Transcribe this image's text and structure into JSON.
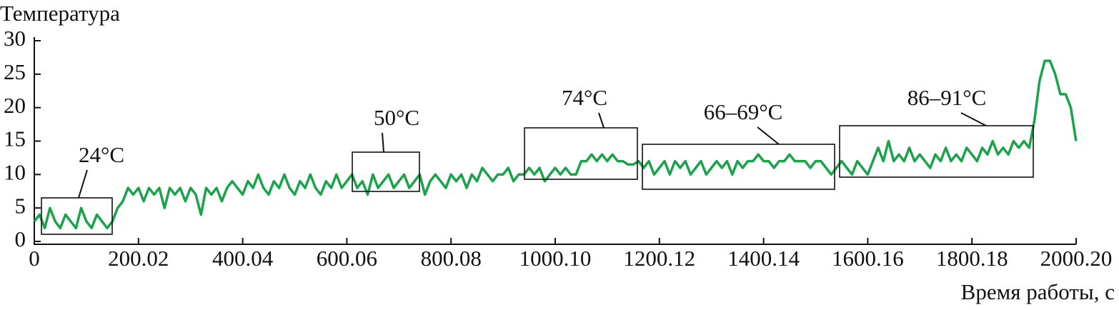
{
  "chart_data": {
    "type": "line",
    "y_label": "Температура",
    "x_label": "Время работы, с",
    "color": "#1aa34a",
    "xlim": [
      0,
      2000.2
    ],
    "ylim": [
      0,
      30
    ],
    "xticks": [
      0,
      200.02,
      400.04,
      600.06,
      800.08,
      {
        "value": 1000.1,
        "label": "1000.10"
      },
      1200.12,
      1400.14,
      1600.16,
      1800.18,
      {
        "value": 2000.2,
        "label": "2000.20"
      }
    ],
    "yticks": [
      0,
      5,
      10,
      15,
      20,
      25,
      30
    ],
    "annotations": [
      "24°C",
      "50°C",
      "74°C",
      "66–69°C",
      "86–91°C"
    ],
    "x": [
      0,
      10,
      20,
      30,
      40,
      50,
      60,
      70,
      80,
      90,
      100,
      110,
      120,
      130,
      140,
      150,
      160,
      170,
      180,
      190,
      200,
      210,
      220,
      230,
      240,
      250,
      260,
      270,
      280,
      290,
      300,
      310,
      320,
      330,
      340,
      350,
      360,
      370,
      380,
      390,
      400,
      410,
      420,
      430,
      440,
      450,
      460,
      470,
      480,
      490,
      500,
      510,
      520,
      530,
      540,
      550,
      560,
      570,
      580,
      590,
      600,
      610,
      620,
      630,
      640,
      650,
      660,
      670,
      680,
      690,
      700,
      710,
      720,
      730,
      740,
      750,
      760,
      770,
      780,
      790,
      800,
      810,
      820,
      830,
      840,
      850,
      860,
      870,
      880,
      890,
      900,
      910,
      920,
      930,
      940,
      950,
      960,
      970,
      980,
      990,
      1000,
      1010,
      1020,
      1030,
      1040,
      1050,
      1060,
      1070,
      1080,
      1090,
      1100,
      1110,
      1120,
      1130,
      1140,
      1150,
      1160,
      1170,
      1180,
      1190,
      1200,
      1210,
      1220,
      1230,
      1240,
      1250,
      1260,
      1270,
      1280,
      1290,
      1300,
      1310,
      1320,
      1330,
      1340,
      1350,
      1360,
      1370,
      1380,
      1390,
      1400,
      1410,
      1420,
      1430,
      1440,
      1450,
      1460,
      1470,
      1480,
      1490,
      1500,
      1510,
      1520,
      1530,
      1540,
      1550,
      1560,
      1570,
      1580,
      1590,
      1600,
      1610,
      1620,
      1630,
      1640,
      1650,
      1660,
      1670,
      1680,
      1690,
      1700,
      1710,
      1720,
      1730,
      1740,
      1750,
      1760,
      1770,
      1780,
      1790,
      1800,
      1810,
      1820,
      1830,
      1840,
      1850,
      1860,
      1870,
      1880,
      1890,
      1900,
      1910,
      1920,
      1930,
      1940,
      1950,
      1960,
      1970,
      1980,
      1990,
      2000
    ],
    "values": [
      3,
      4,
      2,
      5,
      3,
      2,
      4,
      3,
      2,
      5,
      3,
      2,
      4,
      3,
      2,
      3,
      5,
      6,
      8,
      7,
      8,
      6,
      8,
      7,
      8,
      5,
      8,
      7,
      8,
      6,
      8,
      7,
      4,
      8,
      7,
      8,
      6,
      8,
      9,
      8,
      7,
      9,
      8,
      10,
      8,
      7,
      9,
      8,
      10,
      8,
      7,
      9,
      8,
      10,
      8,
      7,
      9,
      8,
      10,
      8,
      9,
      10,
      8,
      9,
      7,
      10,
      8,
      9,
      10,
      8,
      9,
      10,
      8,
      9,
      10,
      7,
      9,
      10,
      9,
      8,
      10,
      9,
      10,
      8,
      10,
      9,
      11,
      10,
      9,
      10,
      10,
      11,
      9,
      10,
      10,
      11,
      10,
      11,
      9,
      10,
      11,
      10,
      11,
      10,
      10,
      12,
      12,
      13,
      12,
      13,
      12,
      13,
      12,
      12,
      11.5,
      11.5,
      12,
      11,
      12,
      10,
      11,
      12,
      10,
      12,
      11,
      12,
      10,
      11,
      12,
      10,
      11,
      12,
      11,
      12,
      10,
      12,
      11,
      12,
      12,
      13,
      12,
      12,
      11,
      12,
      12,
      13,
      12,
      12,
      12,
      11,
      12,
      12,
      11,
      10,
      11,
      12,
      11,
      10,
      12,
      11,
      10,
      12,
      14,
      12,
      15,
      12,
      13,
      12,
      14,
      12,
      13,
      12,
      11,
      13,
      12,
      14,
      12,
      13,
      12,
      14,
      13,
      12,
      14,
      13,
      15,
      13,
      14,
      13,
      15,
      14,
      15,
      14,
      18,
      24,
      27,
      27,
      25,
      22,
      22,
      20,
      15
    ]
  }
}
